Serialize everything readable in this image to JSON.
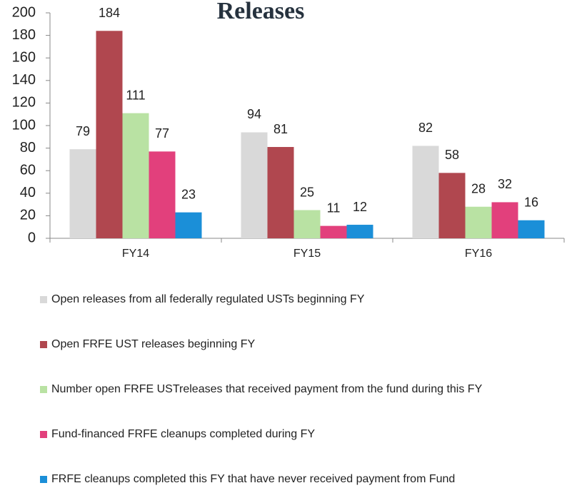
{
  "chart_data": {
    "type": "bar",
    "title": "Releases",
    "categories": [
      "FY14",
      "FY15",
      "FY16"
    ],
    "series": [
      {
        "name": "Open releases from all federally regulated USTs beginning FY",
        "color": "#d9d9d9",
        "values": [
          79,
          94,
          82
        ]
      },
      {
        "name": "Open FRFE UST releases beginning FY",
        "color": "#b0474f",
        "values": [
          184,
          81,
          58
        ]
      },
      {
        "name": "Number open FRFE USTreleases that received payment from the fund during this FY",
        "color": "#b9e2a3",
        "values": [
          111,
          25,
          28
        ]
      },
      {
        "name": "Fund-financed FRFE cleanups completed during FY",
        "color": "#e2407c",
        "values": [
          77,
          11,
          32
        ]
      },
      {
        "name": "FRFE cleanups completed this FY that have never received payment from Fund",
        "color": "#1b8fd8",
        "values": [
          23,
          12,
          16
        ]
      }
    ],
    "ylim": [
      0,
      200
    ],
    "yticks": [
      0,
      20,
      40,
      60,
      80,
      100,
      120,
      140,
      160,
      180,
      200
    ],
    "legend": "bottom"
  }
}
